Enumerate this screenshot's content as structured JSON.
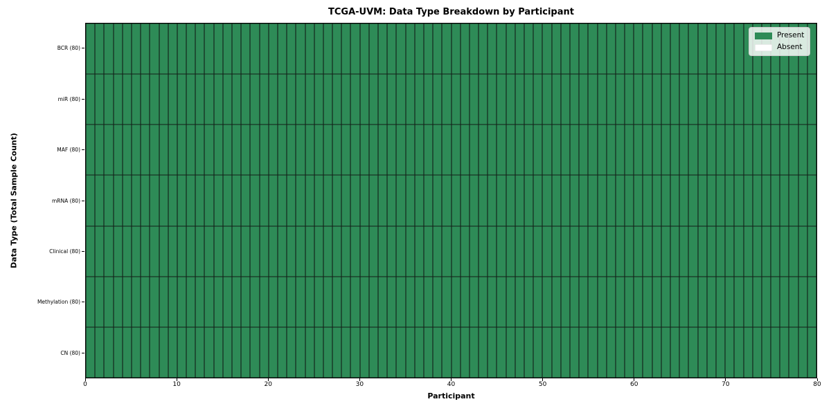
{
  "title": "TCGA-UVM: Data Type Breakdown by Participant",
  "axes": {
    "x_label": "Participant",
    "y_label": "Data Type (Total Sample Count)"
  },
  "legend": {
    "items": [
      {
        "label": "Present",
        "color": "#2e8b57"
      },
      {
        "label": "Absent",
        "color": "#ffffff"
      }
    ]
  },
  "chart_data": {
    "type": "heatmap",
    "title": "TCGA-UVM: Data Type Breakdown by Participant",
    "xlabel": "Participant",
    "ylabel": "Data Type (Total Sample Count)",
    "x_range": [
      0,
      80
    ],
    "x_ticks": [
      0,
      10,
      20,
      30,
      40,
      50,
      60,
      70,
      80
    ],
    "n_participants": 80,
    "rows": [
      {
        "label": "BCR (80)",
        "name": "BCR",
        "total": 80,
        "present": 80,
        "absent": 0
      },
      {
        "label": "miR (80)",
        "name": "miR",
        "total": 80,
        "present": 80,
        "absent": 0
      },
      {
        "label": "MAF (80)",
        "name": "MAF",
        "total": 80,
        "present": 80,
        "absent": 0
      },
      {
        "label": "mRNA (80)",
        "name": "mRNA",
        "total": 80,
        "present": 80,
        "absent": 0
      },
      {
        "label": "Clinical (80)",
        "name": "Clinical",
        "total": 80,
        "present": 80,
        "absent": 0
      },
      {
        "label": "Methylation (80)",
        "name": "Methylation",
        "total": 80,
        "present": 80,
        "absent": 0
      },
      {
        "label": "CN (80)",
        "name": "CN",
        "total": 80,
        "present": 80,
        "absent": 0
      }
    ],
    "colors": {
      "present": "#2e8b57",
      "absent": "#ffffff",
      "gridline": "#141414"
    },
    "legend_entries": [
      "Present",
      "Absent"
    ],
    "legend_position": "upper right",
    "grid": true
  }
}
